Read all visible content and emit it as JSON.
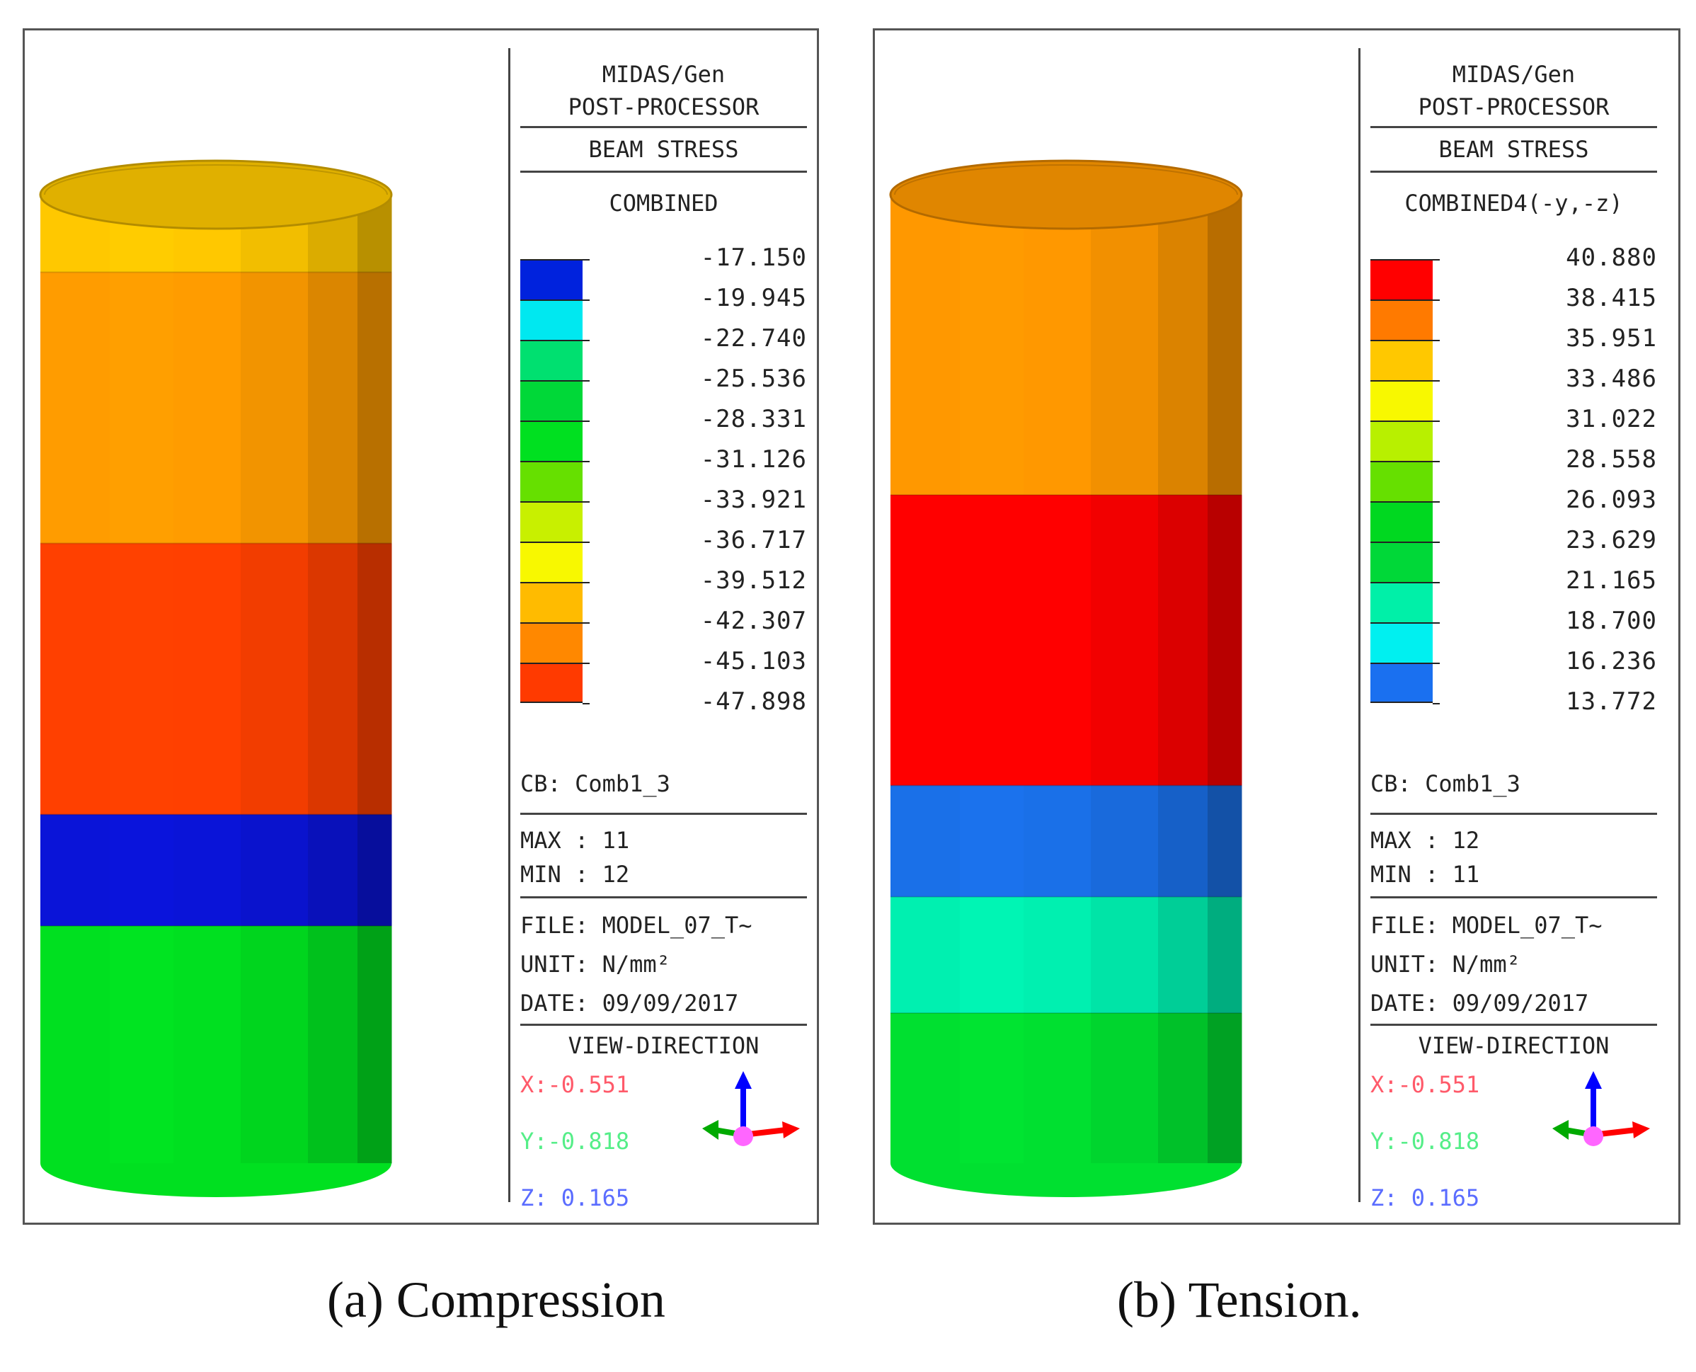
{
  "panels": [
    {
      "software_line1": "MIDAS/Gen",
      "software_line2": "POST-PROCESSOR",
      "result_type": "BEAM STRESS",
      "component": "COMBINED",
      "legend": {
        "values": [
          "-17.150",
          "-19.945",
          "-22.740",
          "-25.536",
          "-28.331",
          "-31.126",
          "-33.921",
          "-36.717",
          "-39.512",
          "-42.307",
          "-45.103",
          "-47.898"
        ],
        "colors": [
          "#0022dd",
          "#00e8f0",
          "#00e070",
          "#00d838",
          "#00e020",
          "#66e000",
          "#c8f000",
          "#f8f800",
          "#ffbb00",
          "#ff8800",
          "#ff3a00"
        ]
      },
      "cylinder": {
        "bands": [
          {
            "color": "#ffc800",
            "fraction": 0.08
          },
          {
            "color": "#ff9c00",
            "fraction": 0.28
          },
          {
            "color": "#ff4000",
            "fraction": 0.28
          },
          {
            "color": "#0a14d8",
            "fraction": 0.115
          },
          {
            "color": "#00e020",
            "fraction": 0.245
          }
        ]
      },
      "load_case": "CB: Comb1_3",
      "max_line": "MAX : 11",
      "min_line": "MIN : 12",
      "file_line": "FILE: MODEL_07_T~",
      "unit_line": "UNIT: N/mm²",
      "date_line": "DATE: 09/09/2017",
      "view_direction_label": "VIEW-DIRECTION",
      "view_x": "X:-0.551",
      "view_y": "Y:-0.818",
      "view_z": "Z: 0.165",
      "caption": "(a) Compression"
    },
    {
      "software_line1": "MIDAS/Gen",
      "software_line2": "POST-PROCESSOR",
      "result_type": "BEAM STRESS",
      "component": "COMBINED4(-y,-z)",
      "legend": {
        "values": [
          "40.880",
          "38.415",
          "35.951",
          "33.486",
          "31.022",
          "28.558",
          "26.093",
          "23.629",
          "21.165",
          "18.700",
          "16.236",
          "13.772"
        ],
        "colors": [
          "#ff0000",
          "#ff7a00",
          "#ffc800",
          "#f8f800",
          "#b8f000",
          "#66e000",
          "#00d820",
          "#00d838",
          "#00f0a8",
          "#00f0f0",
          "#1a70f0"
        ]
      },
      "cylinder": {
        "bands": [
          {
            "color": "#ff9800",
            "fraction": 0.31
          },
          {
            "color": "#ff0000",
            "fraction": 0.3
          },
          {
            "color": "#1a70e8",
            "fraction": 0.115
          },
          {
            "color": "#00f0b0",
            "fraction": 0.12
          },
          {
            "color": "#00e030",
            "fraction": 0.155
          }
        ]
      },
      "load_case": "CB: Comb1_3",
      "max_line": "MAX : 12",
      "min_line": "MIN : 11",
      "file_line": "FILE: MODEL_07_T~",
      "unit_line": "UNIT: N/mm²",
      "date_line": "DATE: 09/09/2017",
      "view_direction_label": "VIEW-DIRECTION",
      "view_x": "X:-0.551",
      "view_y": "Y:-0.818",
      "view_z": "Z: 0.165",
      "caption": "(b) Tension."
    }
  ],
  "colors": {
    "view_x": "#ff5a6a",
    "view_y": "#55ee88",
    "view_z": "#5a6cff",
    "axis_z": "#0000ff",
    "axis_x": "#ff0000",
    "axis_y": "#00aa00",
    "axis_origin": "#ff66ff"
  }
}
